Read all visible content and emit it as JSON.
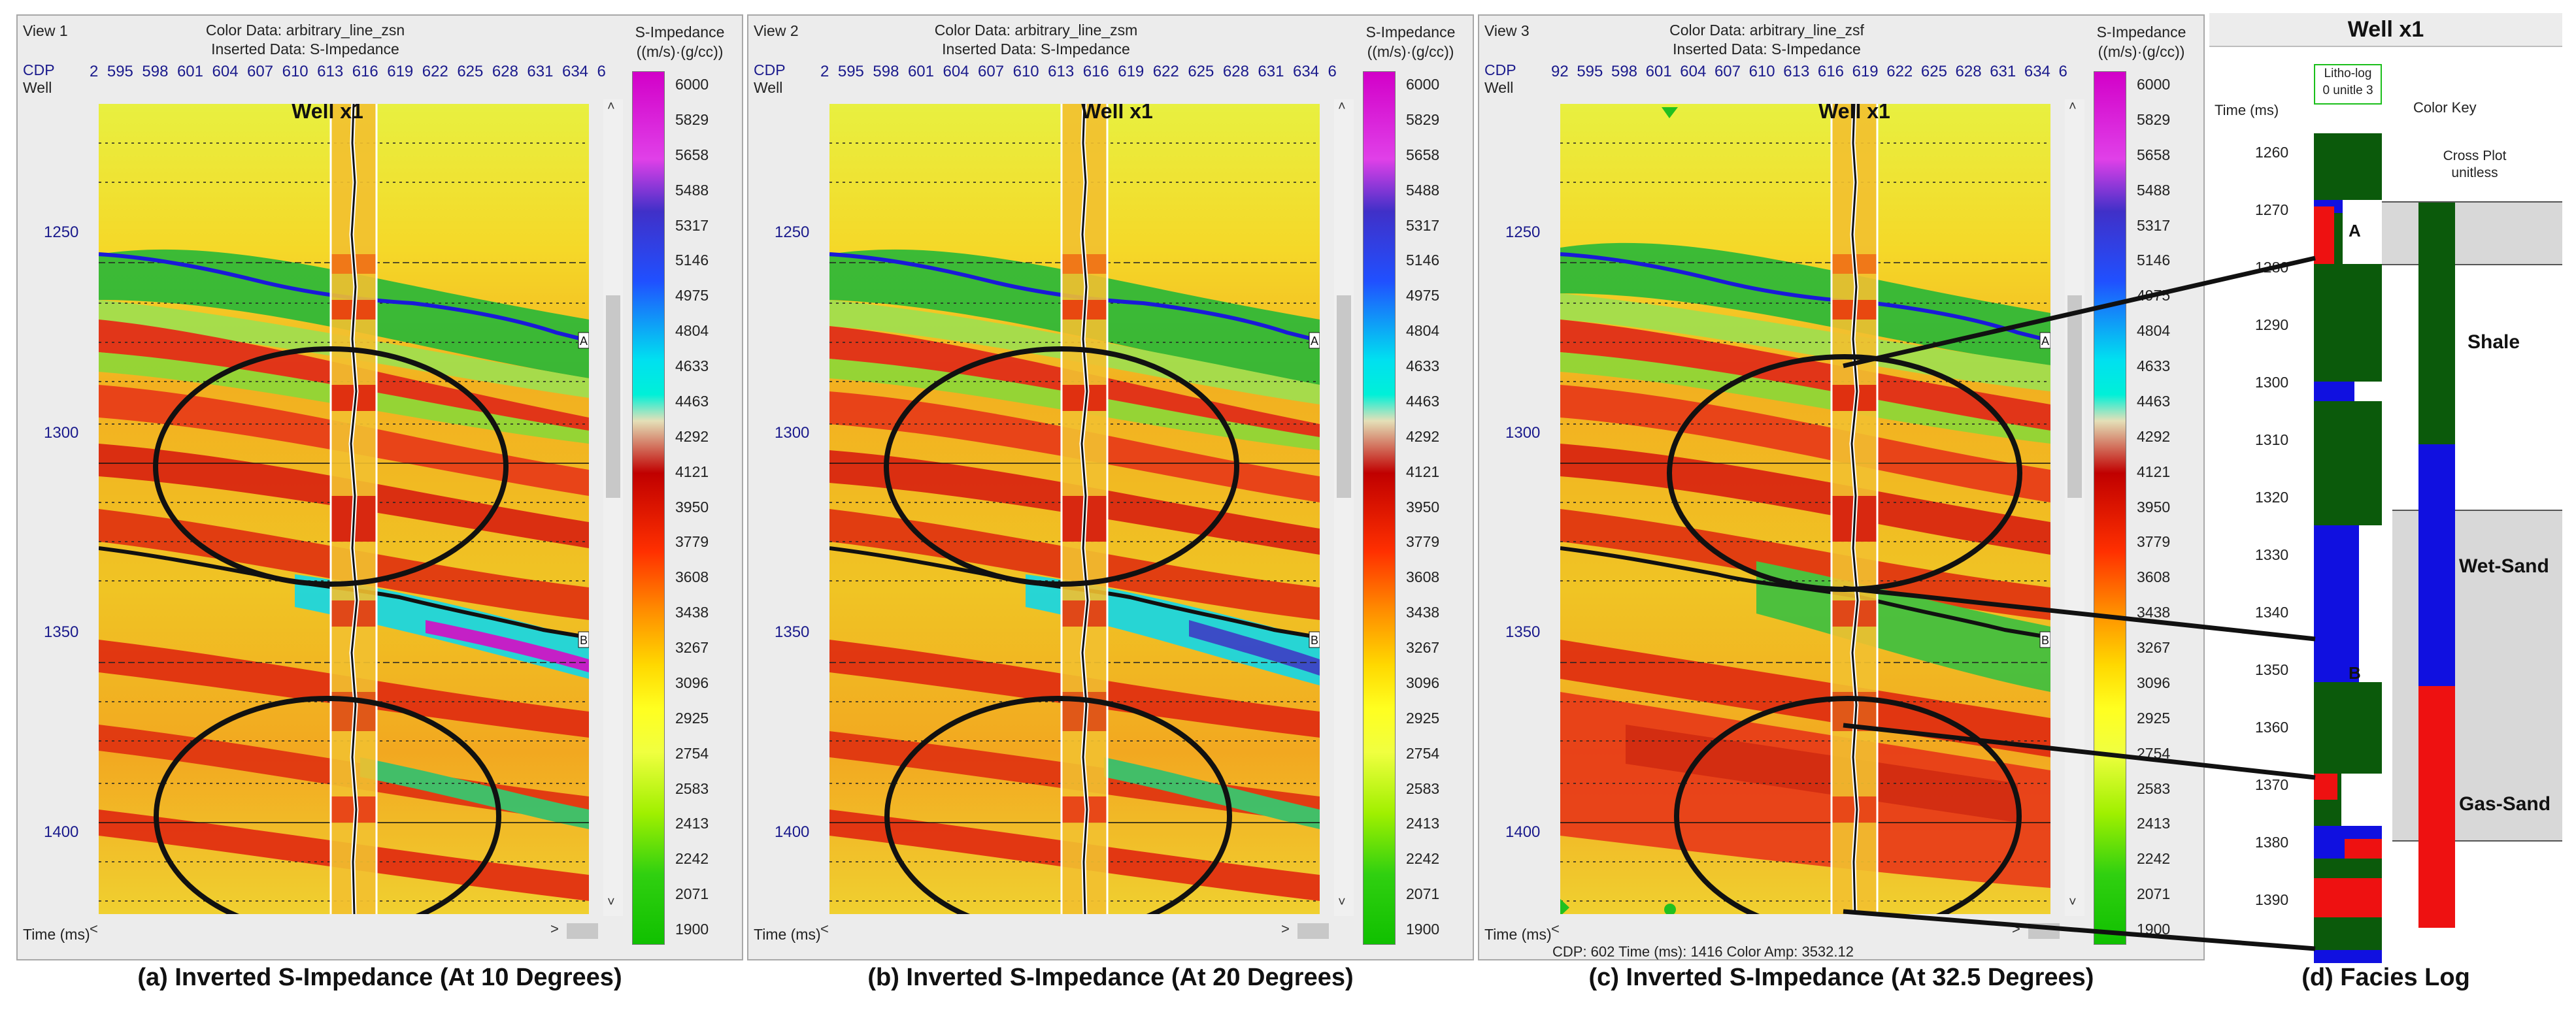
{
  "colorbar": {
    "title": "S-Impedance",
    "unit": "((m/s)·(g/cc))",
    "ticks": [
      "6000",
      "5829",
      "5658",
      "5488",
      "5317",
      "5146",
      "4975",
      "4804",
      "4633",
      "4463",
      "4292",
      "4121",
      "3950",
      "3779",
      "3608",
      "3438",
      "3267",
      "3096",
      "2925",
      "2754",
      "2583",
      "2413",
      "2242",
      "2071",
      "1900"
    ]
  },
  "cdp_label": "CDP",
  "well_label": "Well",
  "well_name": "Well x1",
  "time_axis_label": "Time (ms)",
  "time_ticks": [
    "1250",
    "1300",
    "1350",
    "1400"
  ],
  "horizons": {
    "top": "A",
    "bottom": "B"
  },
  "views": [
    {
      "view_label": "View 1",
      "color_data": "Color Data: arbitrary_line_zsn",
      "inserted_data": "Inserted Data: S-Impedance",
      "cdp_ticks": [
        "2",
        "595",
        "598",
        "601",
        "604",
        "607",
        "610",
        "613",
        "616",
        "619",
        "622",
        "625",
        "628",
        "631",
        "634",
        "6"
      ],
      "caption": "(a) Inverted S-Impedance (At 10 Degrees)"
    },
    {
      "view_label": "View 2",
      "color_data": "Color Data: arbitrary_line_zsm",
      "inserted_data": "Inserted Data: S-Impedance",
      "cdp_ticks": [
        "2",
        "595",
        "598",
        "601",
        "604",
        "607",
        "610",
        "613",
        "616",
        "619",
        "622",
        "625",
        "628",
        "631",
        "634",
        "6"
      ],
      "caption": "(b) Inverted S-Impedance (At 20 Degrees)"
    },
    {
      "view_label": "View 3",
      "color_data": "Color Data: arbitrary_line_zsf",
      "inserted_data": "Inserted Data: S-Impedance",
      "cdp_ticks": [
        "92",
        "595",
        "598",
        "601",
        "604",
        "607",
        "610",
        "613",
        "616",
        "619",
        "622",
        "625",
        "628",
        "631",
        "634",
        "6"
      ],
      "caption": "(c) Inverted S-Impedance (At 32.5 Degrees)",
      "status": "CDP: 602  Time (ms): 1416  Color Amp: 3532.12"
    }
  ],
  "facies": {
    "title": "Well x1",
    "litho_log_label": "Litho-log",
    "litho_scale": "0  unitle  3",
    "time_label": "Time (ms)",
    "color_key_label": "Color Key",
    "cross_plot_label": "Cross Plot",
    "cross_plot_unit": "unitless",
    "time_ticks": [
      "1260",
      "1270",
      "1280",
      "1290",
      "1300",
      "1310",
      "1320",
      "1330",
      "1340",
      "1350",
      "1360",
      "1370",
      "1380",
      "1390"
    ],
    "marker_a": "A",
    "marker_b": "B",
    "classes": [
      {
        "name": "Shale",
        "color": "#0b5a0b"
      },
      {
        "name": "Wet-Sand",
        "color": "#1010e0"
      },
      {
        "name": "Gas-Sand",
        "color": "#ee1111"
      }
    ],
    "caption": "(d) Facies Log"
  }
}
